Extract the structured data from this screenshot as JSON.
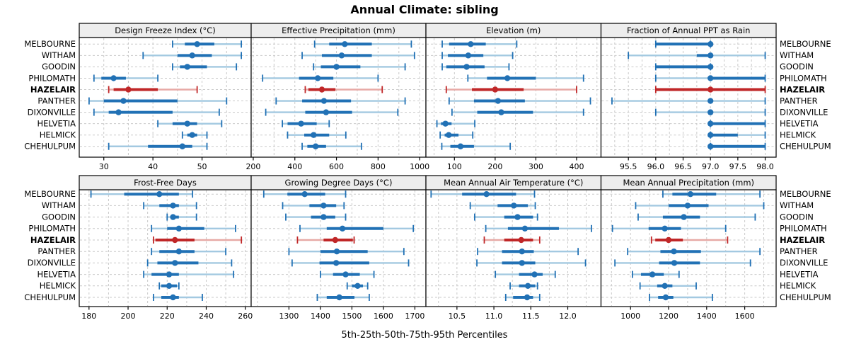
{
  "title": "Annual Climate: sibling",
  "caption": "5th-25th-50th-75th-95th Percentiles",
  "colors": {
    "blue": "#2171b5",
    "blue_light": "#a3c9e1",
    "red": "#c02728",
    "red_light": "#e7a9a5",
    "grid": "#c9c9c9",
    "header_bg": "#ededed",
    "border": "#000000",
    "text": "#000000"
  },
  "stations": [
    "MELBOURNE",
    "WITHAM",
    "GOODIN",
    "PHILOMATH",
    "HAZELAIR",
    "PANTHER",
    "DIXONVILLE",
    "HELVETIA",
    "HELMICK",
    "CHEHULPUM"
  ],
  "highlight_station": "HAZELAIR",
  "chart_data": {
    "type": "trellis-percentile-dotplot",
    "percentile_labels": [
      "5th",
      "25th",
      "50th",
      "75th",
      "95th"
    ],
    "legend_position": "none",
    "grid": "dashed",
    "panels": [
      {
        "title": "Design Freeze Index (°C)",
        "xlim": [
          25,
          60
        ],
        "ticks": [
          30,
          40,
          50
        ],
        "tick_labels": [
          "30",
          "40",
          "50"
        ],
        "gridlines": [
          25,
          30,
          35,
          40,
          45,
          50,
          55
        ],
        "values": [
          [
            44,
            46.5,
            49,
            52.5,
            58
          ],
          [
            38,
            45,
            48,
            52,
            58
          ],
          [
            44,
            45.5,
            47,
            51,
            57
          ],
          [
            28,
            29.5,
            32,
            34.5,
            41
          ],
          [
            31,
            32,
            35,
            41,
            49
          ],
          [
            27,
            30,
            34,
            45,
            55
          ],
          [
            28,
            31,
            33,
            44,
            53.5
          ],
          [
            41,
            44,
            47,
            49,
            54
          ],
          [
            46,
            47,
            48,
            49,
            51
          ],
          [
            31,
            39,
            46,
            48,
            51
          ]
        ]
      },
      {
        "title": "Effective Precipitation (mm)",
        "xlim": [
          190,
          1030
        ],
        "ticks": [
          200,
          400,
          600,
          800,
          1000
        ],
        "tick_labels": [
          "200",
          "400",
          "600",
          "800",
          "1000"
        ],
        "gridlines": [
          200,
          300,
          400,
          500,
          600,
          700,
          800,
          900,
          1000
        ],
        "values": [
          [
            495,
            565,
            640,
            770,
            960
          ],
          [
            435,
            530,
            625,
            770,
            975
          ],
          [
            490,
            525,
            600,
            715,
            930
          ],
          [
            245,
            420,
            510,
            585,
            800
          ],
          [
            450,
            465,
            530,
            595,
            820
          ],
          [
            310,
            435,
            540,
            670,
            930
          ],
          [
            260,
            450,
            550,
            675,
            895
          ],
          [
            340,
            365,
            430,
            505,
            565
          ],
          [
            365,
            445,
            490,
            565,
            645
          ],
          [
            435,
            460,
            500,
            550,
            720
          ]
        ]
      },
      {
        "title": "Elevation (m)",
        "xlim": [
          30,
          460
        ],
        "ticks": [
          100,
          200,
          300,
          400
        ],
        "tick_labels": [
          "100",
          "200",
          "300",
          "400"
        ],
        "gridlines": [
          50,
          100,
          150,
          200,
          250,
          300,
          350,
          400,
          450
        ],
        "values": [
          [
            70,
            87,
            140,
            177,
            253
          ],
          [
            70,
            84,
            134,
            171,
            243
          ],
          [
            70,
            80,
            130,
            174,
            234
          ],
          [
            133,
            180,
            230,
            300,
            417
          ],
          [
            80,
            143,
            200,
            270,
            400
          ],
          [
            87,
            148,
            207,
            273,
            434
          ],
          [
            94,
            156,
            215,
            293,
            417
          ],
          [
            57,
            67,
            78,
            93,
            150
          ],
          [
            65,
            76,
            86,
            110,
            145
          ],
          [
            69,
            90,
            115,
            148,
            237
          ]
        ]
      },
      {
        "title": "Fraction of Annual PPT as Rain",
        "xlim": [
          95.0,
          98.2
        ],
        "ticks": [
          95.5,
          96.0,
          96.5,
          97.0,
          97.5,
          98.0
        ],
        "tick_labels": [
          "95.5",
          "96.0",
          "96.5",
          "97.0",
          "97.5",
          "98.0"
        ],
        "gridlines": [
          95.25,
          95.5,
          95.75,
          96.0,
          96.25,
          96.5,
          96.75,
          97.0,
          97.25,
          97.5,
          97.75,
          98.0
        ],
        "values": [
          [
            96,
            96,
            97,
            97,
            97
          ],
          [
            95.5,
            96.75,
            97,
            97,
            98
          ],
          [
            96,
            96,
            97,
            97,
            97
          ],
          [
            96,
            97,
            97,
            98,
            98
          ],
          [
            96,
            96,
            97,
            98,
            98
          ],
          [
            95.2,
            97,
            97,
            97,
            98
          ],
          [
            96,
            97,
            97,
            97,
            98
          ],
          [
            97,
            97,
            97,
            98,
            98
          ],
          [
            97,
            97,
            97,
            97.5,
            98
          ],
          [
            97,
            97,
            97,
            98,
            98
          ]
        ]
      },
      {
        "title": "Frost-Free Days",
        "xlim": [
          175,
          263
        ],
        "ticks": [
          180,
          200,
          220,
          240,
          260
        ],
        "tick_labels": [
          "180",
          "200",
          "220",
          "240",
          "260"
        ],
        "gridlines": [
          180,
          190,
          200,
          210,
          220,
          230,
          240,
          250,
          260
        ],
        "values": [
          [
            181,
            198,
            216,
            226,
            233
          ],
          [
            208,
            216,
            223,
            226,
            235
          ],
          [
            220,
            222,
            223,
            226,
            235
          ],
          [
            212,
            220,
            226,
            239,
            255
          ],
          [
            213,
            214,
            224,
            234,
            258
          ],
          [
            212,
            216,
            226,
            234,
            250
          ],
          [
            210,
            215,
            224,
            236,
            253
          ],
          [
            208,
            212,
            221,
            226,
            254
          ],
          [
            216,
            217,
            221,
            225,
            226
          ],
          [
            213,
            217,
            223,
            226,
            238
          ]
        ]
      },
      {
        "title": "Growing Degree Days (°C)",
        "xlim": [
          1180,
          1735
        ],
        "ticks": [
          1300,
          1400,
          1500,
          1600,
          1700
        ],
        "tick_labels": [
          "1300",
          "1400",
          "1500",
          "1600",
          "1700"
        ],
        "gridlines": [
          1200,
          1300,
          1400,
          1500,
          1600,
          1700
        ],
        "values": [
          [
            1220,
            1295,
            1350,
            1415,
            1480
          ],
          [
            1280,
            1365,
            1410,
            1450,
            1475
          ],
          [
            1290,
            1370,
            1410,
            1447,
            1480
          ],
          [
            1335,
            1420,
            1470,
            1600,
            1695
          ],
          [
            1327,
            1410,
            1447,
            1503,
            1507
          ],
          [
            1300,
            1400,
            1452,
            1550,
            1665
          ],
          [
            1310,
            1397,
            1450,
            1555,
            1680
          ],
          [
            1400,
            1440,
            1480,
            1525,
            1570
          ],
          [
            1485,
            1500,
            1518,
            1535,
            1550
          ],
          [
            1390,
            1420,
            1460,
            1508,
            1555
          ]
        ]
      },
      {
        "title": "Mean Annual Air Temperature (°C)",
        "xlim": [
          10.08,
          12.45
        ],
        "ticks": [
          10.5,
          11.0,
          11.5,
          12.0
        ],
        "tick_labels": [
          "10.5",
          "11.0",
          "11.5",
          "12.0"
        ],
        "gridlines": [
          10.25,
          10.5,
          10.75,
          11.0,
          11.25,
          11.5,
          11.75,
          12.0,
          12.25
        ],
        "values": [
          [
            10.15,
            10.57,
            10.9,
            11.3,
            11.55
          ],
          [
            10.68,
            11.05,
            11.27,
            11.46,
            11.56
          ],
          [
            10.74,
            11.14,
            11.32,
            11.53,
            11.59
          ],
          [
            10.89,
            11.19,
            11.42,
            11.88,
            12.32
          ],
          [
            10.87,
            11.14,
            11.37,
            11.53,
            11.62
          ],
          [
            10.78,
            11.11,
            11.38,
            11.54,
            12.14
          ],
          [
            10.77,
            11.11,
            11.38,
            11.56,
            12.24
          ],
          [
            11.02,
            11.34,
            11.55,
            11.66,
            11.83
          ],
          [
            11.22,
            11.34,
            11.46,
            11.56,
            11.59
          ],
          [
            11.16,
            11.26,
            11.45,
            11.53,
            11.62
          ]
        ]
      },
      {
        "title": "Mean Annual Precipitation (mm)",
        "xlim": [
          845,
          1765
        ],
        "ticks": [
          1000,
          1200,
          1400,
          1600
        ],
        "tick_labels": [
          "1000",
          "1200",
          "1400",
          "1600"
        ],
        "gridlines": [
          900,
          1000,
          1100,
          1200,
          1300,
          1400,
          1500,
          1600,
          1700
        ],
        "values": [
          [
            1170,
            1220,
            1315,
            1450,
            1680
          ],
          [
            1027,
            1200,
            1300,
            1410,
            1700
          ],
          [
            1040,
            1170,
            1280,
            1365,
            1655
          ],
          [
            905,
            1095,
            1180,
            1265,
            1500
          ],
          [
            1110,
            1130,
            1200,
            1275,
            1510
          ],
          [
            985,
            1157,
            1228,
            1370,
            1680
          ],
          [
            918,
            1150,
            1230,
            1365,
            1630
          ],
          [
            1010,
            1055,
            1115,
            1175,
            1255
          ],
          [
            1050,
            1140,
            1180,
            1220,
            1345
          ],
          [
            1100,
            1145,
            1185,
            1225,
            1430
          ]
        ]
      }
    ]
  }
}
